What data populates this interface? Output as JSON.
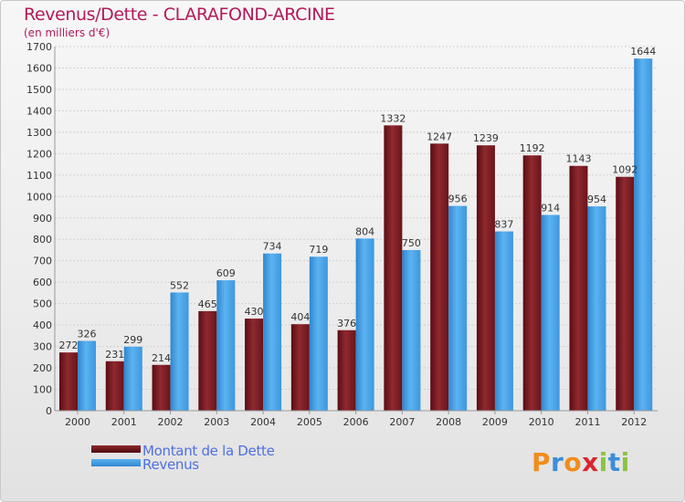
{
  "chart_data": {
    "type": "bar",
    "title": "Revenus/Dette - CLARAFOND-ARCINE",
    "subtitle": "(en milliers d'€)",
    "xlabel": "",
    "ylabel": "",
    "ylim": [
      0,
      1700
    ],
    "ytick_step": 100,
    "grid": true,
    "categories": [
      "2000",
      "2001",
      "2002",
      "2003",
      "2004",
      "2005",
      "2006",
      "2007",
      "2008",
      "2009",
      "2010",
      "2011",
      "2012"
    ],
    "series": [
      {
        "name": "Montant de la Dette",
        "color": "#7a1c22",
        "values": [
          272,
          231,
          214,
          465,
          430,
          404,
          376,
          1332,
          1247,
          1239,
          1192,
          1143,
          1092
        ]
      },
      {
        "name": "Revenus",
        "color": "#4aa3e8",
        "values": [
          326,
          299,
          552,
          609,
          734,
          719,
          804,
          750,
          956,
          837,
          914,
          954,
          1644
        ]
      }
    ],
    "legend_position": "bottom-left"
  },
  "legend": {
    "dette_label": "Montant de la Dette",
    "revenus_label": "Revenus"
  },
  "logo": {
    "letters": [
      "P",
      "r",
      "o",
      "x",
      "i",
      "t",
      "i"
    ],
    "colors": [
      "#f28c1b",
      "#3b8fd6",
      "#f28c1b",
      "#d9262e",
      "#8bc540",
      "#3b8fd6",
      "#8bc540"
    ]
  }
}
